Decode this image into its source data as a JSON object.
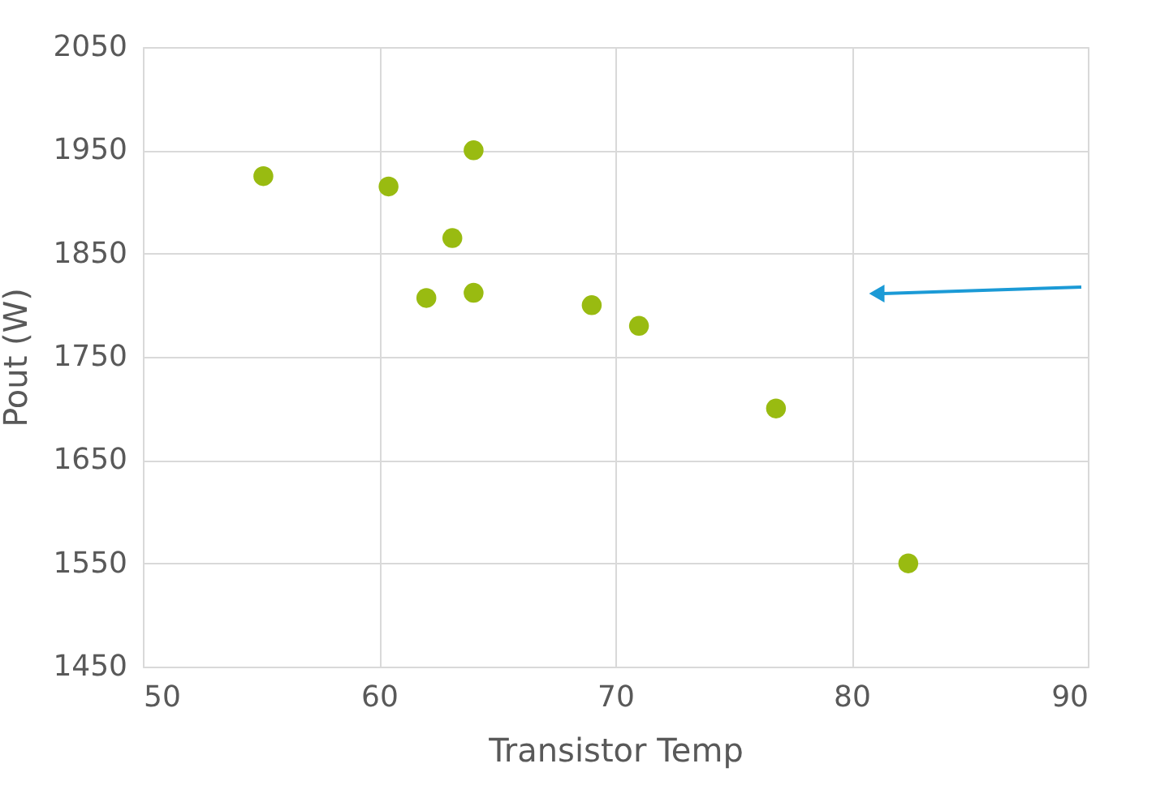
{
  "chart_data": {
    "type": "scatter",
    "xlabel": "Transistor Temp",
    "ylabel": "Pout (W)",
    "x": [
      55.1,
      60.4,
      64.0,
      63.1,
      62.0,
      64.0,
      69.0,
      71.0,
      76.8,
      82.4
    ],
    "series": [
      {
        "color": "#99bb11",
        "values": [
          1925,
          1915,
          1950,
          1865,
          1807,
          1812,
          1800,
          1780,
          1700,
          1550
        ]
      }
    ],
    "xlim": [
      50,
      90
    ],
    "xticks": [
      50,
      60,
      70,
      80,
      90
    ],
    "ylim": [
      1450,
      2050
    ],
    "yticks": [
      1450,
      1550,
      1650,
      1750,
      1850,
      1950,
      2050
    ],
    "grid": true,
    "marker": "circle"
  }
}
